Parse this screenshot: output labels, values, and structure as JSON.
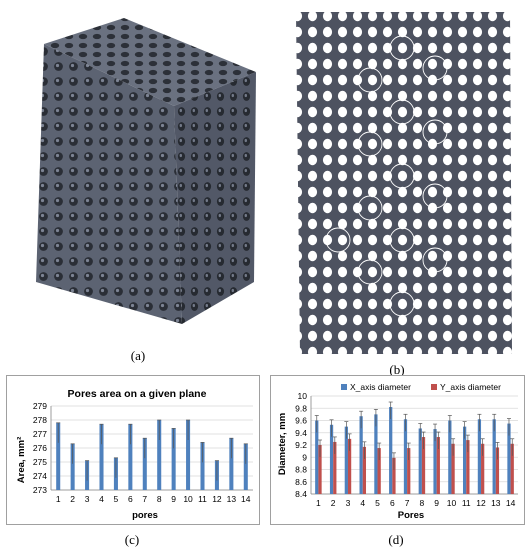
{
  "captions": {
    "a": "(a)",
    "b": "(b)",
    "c": "(c)",
    "d": "(d)"
  },
  "colors": {
    "lattice": "#5a6170",
    "lattice_dark": "#3c414c",
    "bar_blue": "#4f81bd",
    "bar_red": "#c0504d",
    "grid": "#d9d9d9"
  },
  "chart_data": [
    {
      "type": "bar",
      "title": "Pores area on a given plane",
      "xlabel": "pores",
      "ylabel": "Area, mm²",
      "ylim": [
        273,
        279
      ],
      "yticks": [
        "273",
        "274",
        "275",
        "276",
        "277",
        "278",
        "279"
      ],
      "categories": [
        "1",
        "2",
        "3",
        "4",
        "5",
        "6",
        "7",
        "8",
        "9",
        "10",
        "11",
        "12",
        "13",
        "14"
      ],
      "values": [
        277.8,
        276.3,
        275.1,
        277.7,
        275.3,
        277.7,
        276.7,
        278.0,
        277.4,
        278.0,
        276.4,
        275.1,
        276.7,
        276.3
      ],
      "error_bars": true,
      "color": "#4f81bd"
    },
    {
      "type": "bar",
      "title": "",
      "xlabel": "Pores",
      "ylabel": "Diameter, mm",
      "ylim": [
        8.4,
        10
      ],
      "yticks": [
        "8.4",
        "8.6",
        "8.8",
        "9",
        "9.2",
        "9.4",
        "9.6",
        "9.8",
        "10"
      ],
      "legend": "top",
      "categories": [
        "1",
        "2",
        "3",
        "4",
        "5",
        "6",
        "7",
        "8",
        "9",
        "10",
        "11",
        "12",
        "13",
        "14"
      ],
      "series": [
        {
          "name": "X_axis diameter",
          "color": "#4f81bd",
          "values": [
            9.6,
            9.53,
            9.5,
            9.67,
            9.7,
            9.82,
            9.62,
            9.47,
            9.46,
            9.6,
            9.5,
            9.62,
            9.62,
            9.55
          ]
        },
        {
          "name": "Y_axis diameter",
          "color": "#c0504d",
          "values": [
            9.2,
            9.25,
            9.3,
            9.17,
            9.15,
            8.99,
            9.15,
            9.33,
            9.33,
            9.22,
            9.28,
            9.22,
            9.16,
            9.22
          ]
        }
      ],
      "error_bars": true
    }
  ]
}
